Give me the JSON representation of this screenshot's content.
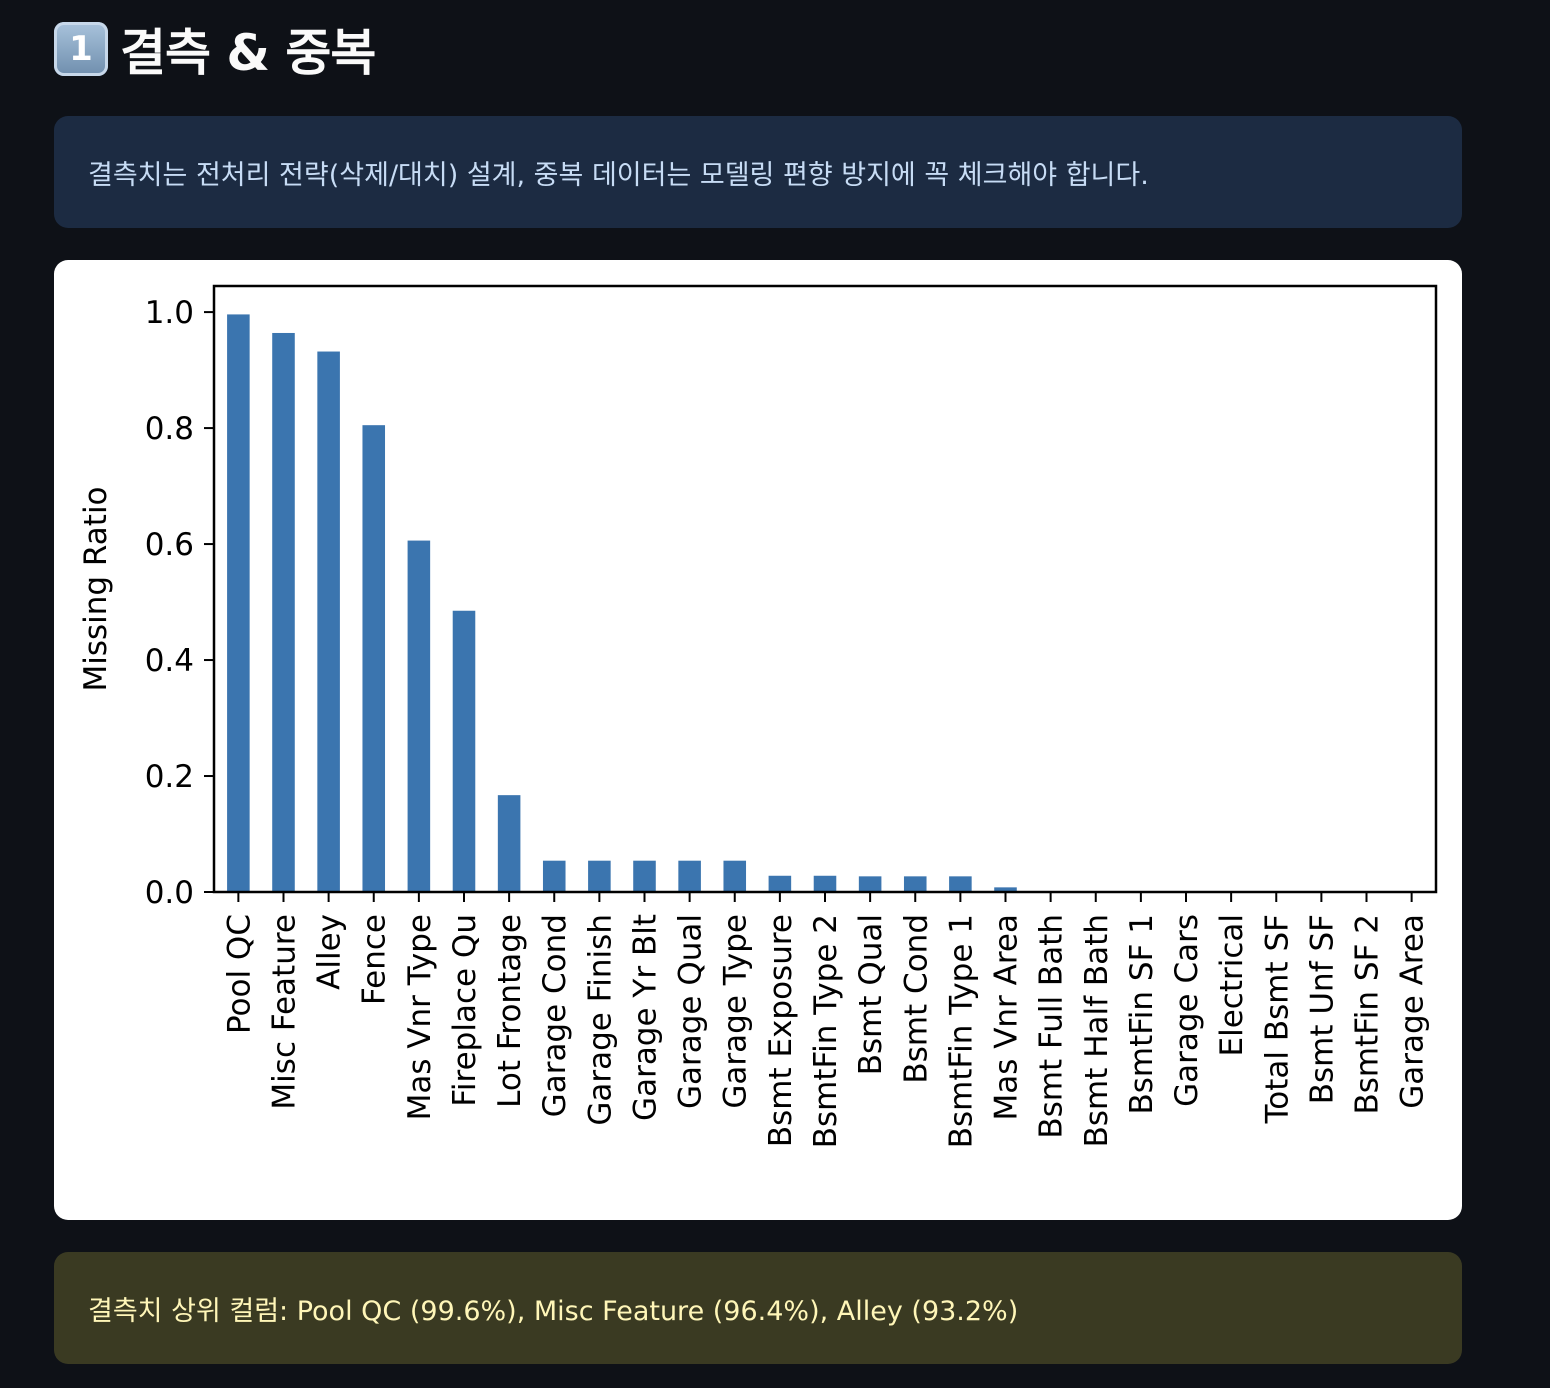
{
  "header": {
    "badge_number": "1",
    "title": "결측 & 중복"
  },
  "info": {
    "text": "결측치는 전처리 전략(삭제/대치) 설계, 중복 데이터는 모델링 편향 방지에 꼭 체크해야 합니다."
  },
  "warning": {
    "text": "결측치 상위 컬럼: Pool QC (99.6%), Misc Feature (96.4%), Alley (93.2%)"
  },
  "colors": {
    "background": "#0e1117",
    "bar": "#3b75af",
    "info_bg": "#1c2b42",
    "warning_bg": "#3a3a22"
  },
  "chart_data": {
    "type": "bar",
    "title": "",
    "xlabel": "",
    "ylabel": "Missing Ratio",
    "ylim": [
      0,
      1.045
    ],
    "yticks": [
      0.0,
      0.2,
      0.4,
      0.6,
      0.8,
      1.0
    ],
    "ytick_labels": [
      "0.0",
      "0.2",
      "0.4",
      "0.6",
      "0.8",
      "1.0"
    ],
    "grid": false,
    "categories": [
      "Pool QC",
      "Misc Feature",
      "Alley",
      "Fence",
      "Mas Vnr Type",
      "Fireplace Qu",
      "Lot Frontage",
      "Garage Cond",
      "Garage Finish",
      "Garage Yr Blt",
      "Garage Qual",
      "Garage Type",
      "Bsmt Exposure",
      "BsmtFin Type 2",
      "Bsmt Qual",
      "Bsmt Cond",
      "BsmtFin Type 1",
      "Mas Vnr Area",
      "Bsmt Full Bath",
      "Bsmt Half Bath",
      "BsmtFin SF 1",
      "Garage Cars",
      "Electrical",
      "Total Bsmt SF",
      "Bsmt Unf SF",
      "BsmtFin SF 2",
      "Garage Area"
    ],
    "values": [
      0.996,
      0.964,
      0.932,
      0.805,
      0.606,
      0.485,
      0.167,
      0.054,
      0.054,
      0.054,
      0.054,
      0.054,
      0.028,
      0.028,
      0.027,
      0.027,
      0.027,
      0.008,
      0.001,
      0.001,
      0.0003,
      0.0003,
      0.0003,
      0.0003,
      0.0003,
      0.0003,
      0.0003
    ]
  }
}
